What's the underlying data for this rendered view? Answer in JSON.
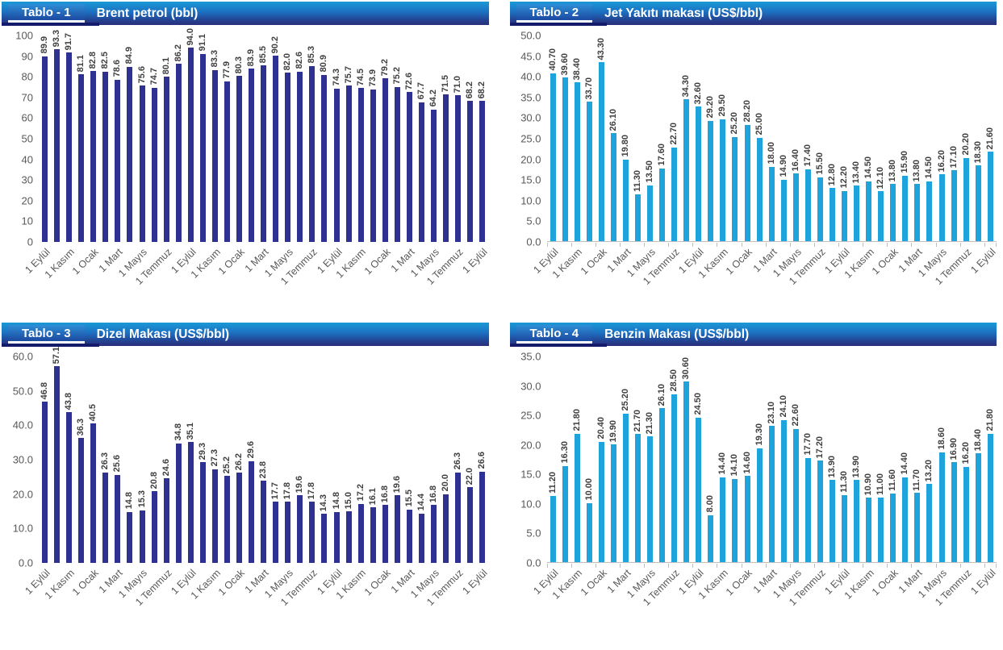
{
  "theme": {
    "background": "#ffffff",
    "header_gradient_top": "#1a9ad7",
    "header_gradient_bottom": "#2a2e7c",
    "header_underbar": "#151b6b",
    "header_text_color": "#ffffff",
    "dark_bar_color": "#2e3192",
    "light_bar_color": "#1fa3dc",
    "value_label_color": "#3f3f3f",
    "axis_label_color": "#595959",
    "axis_line_color": "#bfbfbf"
  },
  "chart_data": [
    {
      "type": "bar",
      "tab_label": "Tablo - 1",
      "title": "Brent petrol (bbl)",
      "bar_color": "#2e3192",
      "ylim": [
        0,
        100
      ],
      "yticks": [
        "0",
        "10",
        "20",
        "30",
        "40",
        "50",
        "60",
        "70",
        "80",
        "90",
        "100"
      ],
      "grid": false,
      "legend": null,
      "axis_line": false,
      "x_tick_marks": false,
      "categories": [
        "1 Eylül",
        "",
        "1 Kasım",
        "",
        "1 Ocak",
        "",
        "1 Mart",
        "",
        "1 Mayıs",
        "",
        "1 Temmuz",
        "",
        "1 Eylül",
        "",
        "1 Kasım",
        "",
        "1 Ocak",
        "",
        "1 Mart",
        "",
        "1 Mayıs",
        "",
        "1 Temmuz",
        "",
        "1 Eylül",
        "",
        "1 Kasım",
        "",
        "1 Ocak",
        "",
        "1 Mart",
        "",
        "1 Mayıs",
        "",
        "1 Temmuz",
        "",
        "1 Eylül"
      ],
      "values": [
        "89.9",
        "93.3",
        "91.7",
        "81.1",
        "82.8",
        "82.5",
        "78.6",
        "84.9",
        "75.6",
        "74.7",
        "80.1",
        "86.2",
        "94.0",
        "91.1",
        "83.3",
        "77.9",
        "80.3",
        "83.9",
        "85.5",
        "90.2",
        "82.0",
        "82.6",
        "85.3",
        "80.9",
        "74.3",
        "75.7",
        "74.5",
        "73.9",
        "79.2",
        "75.2",
        "72.6",
        "67.7",
        "64.2",
        "71.5",
        "71.0",
        "68.2",
        "68.2"
      ]
    },
    {
      "type": "bar",
      "tab_label": "Tablo - 2",
      "title": "Jet Yakıtı makası (US$/bbl)",
      "bar_color": "#1fa3dc",
      "ylim": [
        0,
        50
      ],
      "yticks": [
        "0.0",
        "5.0",
        "10.0",
        "15.0",
        "20.0",
        "25.0",
        "30.0",
        "35.0",
        "40.0",
        "45.0",
        "50.0"
      ],
      "grid": false,
      "legend": null,
      "axis_line": true,
      "x_tick_marks": true,
      "categories": [
        "1 Eylül",
        "",
        "1 Kasım",
        "",
        "1 Ocak",
        "",
        "1 Mart",
        "",
        "1 Mayıs",
        "",
        "1 Temmuz",
        "",
        "1 Eylül",
        "",
        "1 Kasım",
        "",
        "1 Ocak",
        "",
        "1 Mart",
        "",
        "1 Mayıs",
        "",
        "1 Temmuz",
        "",
        "1 Eylül",
        "",
        "1 Kasım",
        "",
        "1 Ocak",
        "",
        "1 Mart",
        "",
        "1 Mayıs",
        "",
        "1 Temmuz",
        "",
        "1 Eylül"
      ],
      "values": [
        "40.70",
        "39.60",
        "38.40",
        "33.70",
        "43.30",
        "26.10",
        "19.80",
        "11.30",
        "13.50",
        "17.60",
        "22.70",
        "34.30",
        "32.60",
        "29.20",
        "29.50",
        "25.20",
        "28.20",
        "25.00",
        "18.00",
        "14.90",
        "16.40",
        "17.40",
        "15.50",
        "12.80",
        "12.20",
        "13.40",
        "14.50",
        "12.10",
        "13.80",
        "15.90",
        "13.80",
        "14.50",
        "16.20",
        "17.10",
        "20.20",
        "18.30",
        "21.60"
      ]
    },
    {
      "type": "bar",
      "tab_label": "Tablo - 3",
      "title": "Dizel Makası (US$/bbl)",
      "bar_color": "#2e3192",
      "ylim": [
        0,
        60
      ],
      "yticks": [
        "0.0",
        "10.0",
        "20.0",
        "30.0",
        "40.0",
        "50.0",
        "60.0"
      ],
      "grid": false,
      "legend": null,
      "axis_line": false,
      "x_tick_marks": false,
      "categories": [
        "1 Eylül",
        "",
        "1 Kasım",
        "",
        "1 Ocak",
        "",
        "1 Mart",
        "",
        "1 Mayıs",
        "",
        "1 Temmuz",
        "",
        "1 Eylül",
        "",
        "1 Kasım",
        "",
        "1 Ocak",
        "",
        "1 Mart",
        "",
        "1 Mayıs",
        "",
        "1 Temmuz",
        "",
        "1 Eylül",
        "",
        "1 Kasım",
        "",
        "1 Ocak",
        "",
        "1 Mart",
        "",
        "1 Mayıs",
        "",
        "1 Temmuz",
        "",
        "1 Eylül"
      ],
      "values": [
        "46.8",
        "57.1",
        "43.8",
        "36.3",
        "40.5",
        "26.3",
        "25.6",
        "14.8",
        "15.3",
        "20.8",
        "24.6",
        "34.8",
        "35.1",
        "29.3",
        "27.3",
        "25.2",
        "26.2",
        "29.6",
        "23.8",
        "17.7",
        "17.8",
        "19.6",
        "17.8",
        "14.3",
        "14.8",
        "15.0",
        "17.2",
        "16.1",
        "16.8",
        "19.6",
        "15.5",
        "14.4",
        "16.8",
        "20.0",
        "26.3",
        "22.0",
        "26.6"
      ]
    },
    {
      "type": "bar",
      "tab_label": "Tablo - 4",
      "title": "Benzin Makası (US$/bbl)",
      "bar_color": "#1fa3dc",
      "ylim": [
        0,
        35
      ],
      "yticks": [
        "0.0",
        "5.0",
        "10.0",
        "15.0",
        "20.0",
        "25.0",
        "30.0",
        "35.0"
      ],
      "grid": false,
      "legend": null,
      "axis_line": true,
      "x_tick_marks": true,
      "categories": [
        "1 Eylül",
        "",
        "1 Kasım",
        "",
        "1 Ocak",
        "",
        "1 Mart",
        "",
        "1 Mayıs",
        "",
        "1 Temmuz",
        "",
        "1 Eylül",
        "",
        "1 Kasım",
        "",
        "1 Ocak",
        "",
        "1 Mart",
        "",
        "1 Mayıs",
        "",
        "1 Temmuz",
        "",
        "1 Eylül",
        "",
        "1 Kasım",
        "",
        "1 Ocak",
        "",
        "1 Mart",
        "",
        "1 Mayıs",
        "",
        "1 Temmuz",
        "",
        "1 Eylül"
      ],
      "values": [
        "11.20",
        "16.30",
        "21.80",
        "10.00",
        "20.40",
        "19.90",
        "25.20",
        "21.70",
        "21.30",
        "26.10",
        "28.50",
        "30.60",
        "24.50",
        "8.00",
        "14.40",
        "14.10",
        "14.60",
        "19.30",
        "23.10",
        "24.10",
        "22.60",
        "17.70",
        "17.20",
        "13.90",
        "11.30",
        "13.90",
        "10.90",
        "11.00",
        "11.60",
        "14.40",
        "11.70",
        "13.20",
        "18.60",
        "16.90",
        "16.20",
        "18.40",
        "21.80"
      ]
    }
  ]
}
